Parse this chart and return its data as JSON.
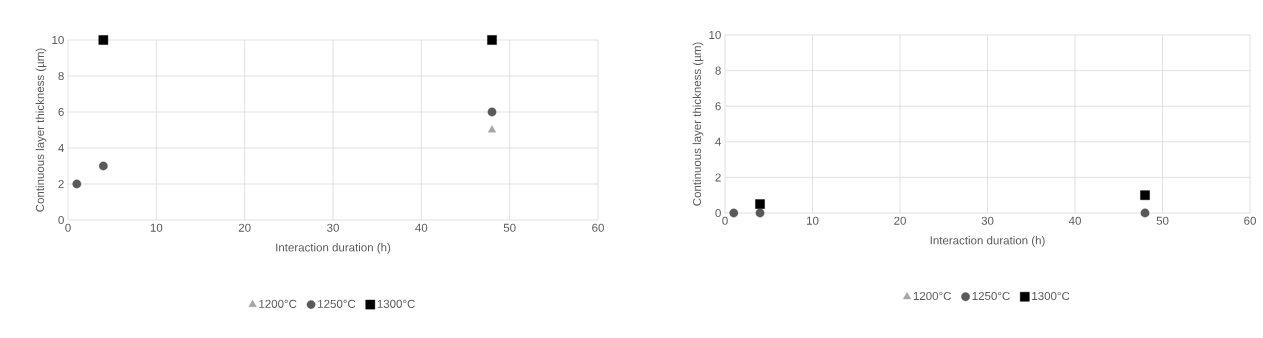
{
  "chart_data": [
    {
      "type": "scatter",
      "xlabel": "Interaction duration (h)",
      "ylabel": "Continuous layer thickness (µm)",
      "xlim": [
        0,
        60
      ],
      "ylim": [
        0,
        10
      ],
      "xticks": [
        0,
        10,
        20,
        30,
        40,
        50,
        60
      ],
      "yticks": [
        0,
        2,
        4,
        6,
        8,
        10
      ],
      "grid": true,
      "legend": "bottom",
      "series": [
        {
          "name": "1200°C",
          "color": "#a6a6a6",
          "marker": "triangle",
          "x": [
            48
          ],
          "values": [
            5
          ]
        },
        {
          "name": "1250°C",
          "color": "#595959",
          "marker": "circle",
          "x": [
            1,
            4,
            48
          ],
          "values": [
            2,
            3,
            6
          ]
        },
        {
          "name": "1300°C",
          "color": "#000000",
          "marker": "square",
          "x": [
            4,
            48
          ],
          "values": [
            10,
            10
          ]
        }
      ]
    },
    {
      "type": "scatter",
      "xlabel": "Interaction duration (h)",
      "ylabel": "Continuous layer thickness (µm)",
      "xlim": [
        0,
        60
      ],
      "ylim": [
        0,
        10
      ],
      "xticks": [
        0,
        10,
        20,
        30,
        40,
        50,
        60
      ],
      "yticks": [
        0,
        2,
        4,
        6,
        8,
        10
      ],
      "grid": true,
      "legend": "bottom",
      "series": [
        {
          "name": "1200°C",
          "color": "#a6a6a6",
          "marker": "triangle",
          "x": [
            48
          ],
          "values": [
            0
          ]
        },
        {
          "name": "1250°C",
          "color": "#595959",
          "marker": "circle",
          "x": [
            1,
            4,
            48
          ],
          "values": [
            0,
            0,
            0
          ]
        },
        {
          "name": "1300°C",
          "color": "#000000",
          "marker": "square",
          "x": [
            4,
            48
          ],
          "values": [
            0.5,
            1
          ]
        }
      ]
    }
  ]
}
